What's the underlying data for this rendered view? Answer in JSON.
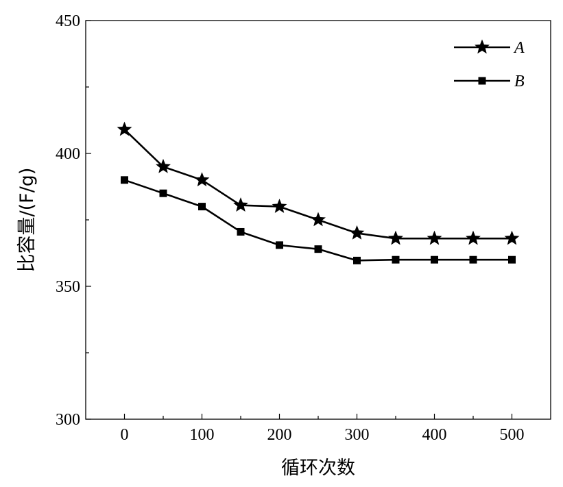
{
  "chart_data": {
    "type": "line",
    "title": "",
    "xlabel": "循环次数",
    "ylabel": "比容量/(F/g)",
    "xlim": [
      -50,
      550
    ],
    "ylim": [
      300,
      450
    ],
    "xticks": [
      0,
      100,
      200,
      300,
      400,
      500
    ],
    "yticks": [
      300,
      350,
      400,
      450
    ],
    "x": [
      0,
      50,
      100,
      150,
      200,
      250,
      300,
      350,
      400,
      450,
      500
    ],
    "series": [
      {
        "name": "A",
        "marker": "star",
        "values": [
          409,
          395,
          390,
          380.5,
          380,
          375,
          370,
          368,
          368,
          368,
          368
        ]
      },
      {
        "name": "B",
        "marker": "square",
        "values": [
          390,
          385,
          380,
          370.5,
          365.5,
          364,
          359.7,
          360,
          360,
          360,
          360
        ]
      }
    ],
    "legend_position": "top-right",
    "grid": false,
    "color": "#000000"
  }
}
